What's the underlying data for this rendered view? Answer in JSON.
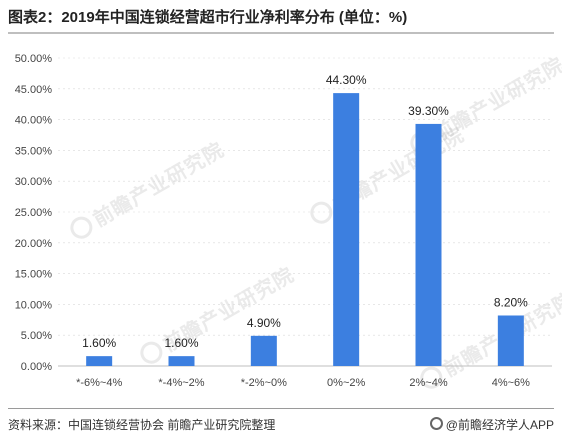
{
  "title": "图表2：2019年中国连锁经营超市行业净利率分布 (单位：%)",
  "watermark": "前瞻产业研究院",
  "source": "资料来源：中国连锁经营协会 前瞻产业研究院整理",
  "brand": "@前瞻经济学人APP",
  "colors": {
    "bar": "#3c7fe0",
    "axis": "#bfbfbf",
    "grid": "#d9d9d9",
    "label": "#444444"
  },
  "chart_data": {
    "type": "bar",
    "categories": [
      "*-6%~4%",
      "*-4%~2%",
      "*-2%~0%",
      "0%~2%",
      "2%~4%",
      "4%~6%"
    ],
    "values": [
      1.6,
      1.6,
      4.9,
      44.3,
      39.3,
      8.2
    ],
    "data_labels": [
      "1.60%",
      "1.60%",
      "4.90%",
      "44.30%",
      "39.30%",
      "8.20%"
    ],
    "y_ticks": [
      "0.00%",
      "5.00%",
      "10.00%",
      "15.00%",
      "20.00%",
      "25.00%",
      "30.00%",
      "35.00%",
      "40.00%",
      "45.00%",
      "50.00%"
    ],
    "ylim": [
      0,
      50
    ],
    "y_step": 5,
    "grid": true,
    "legend": "none"
  }
}
